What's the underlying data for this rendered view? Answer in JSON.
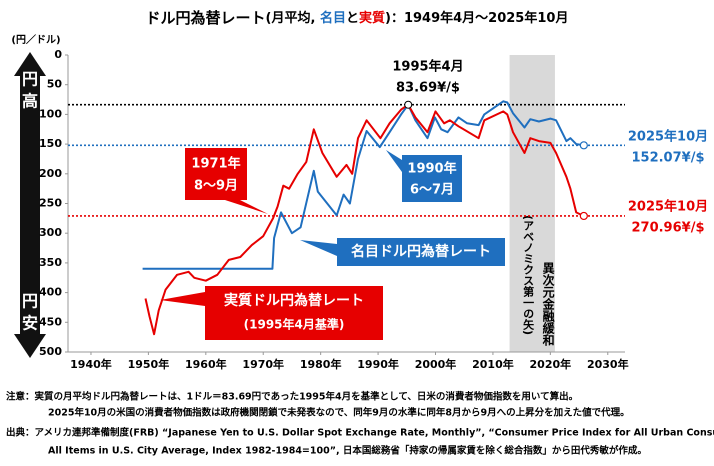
{
  "chart_data": {
    "type": "line",
    "title": [
      "ドル円為替レート",
      "(月平均, ",
      "名目",
      "と",
      "実質",
      ")：1949年4月〜2025年10月"
    ],
    "y_unit": "(円／ドル)",
    "y_arrow": {
      "top": [
        "円",
        "高"
      ],
      "bottom": [
        "円",
        "安"
      ]
    },
    "xlim": [
      1936,
      2033
    ],
    "xticks": [
      {
        "value": 1940,
        "label": "1940年"
      },
      {
        "value": 1950,
        "label": "1950年"
      },
      {
        "value": 1960,
        "label": "1960年"
      },
      {
        "value": 1970,
        "label": "1970年"
      },
      {
        "value": 1980,
        "label": "1980年"
      },
      {
        "value": 1990,
        "label": "1990年"
      },
      {
        "value": 2000,
        "label": "2000年"
      },
      {
        "value": 2010,
        "label": "2010年"
      },
      {
        "value": 2020,
        "label": "2020年"
      },
      {
        "value": 2030,
        "label": "2030年"
      }
    ],
    "ylim": [
      0,
      500
    ],
    "y_inverted": true,
    "yticks": [
      0,
      50,
      100,
      150,
      200,
      250,
      300,
      350,
      400,
      450,
      500
    ],
    "shade": {
      "x": [
        2012.9,
        2020.8
      ],
      "color": "#d9d9d9",
      "labels": [
        "異次元金融緩和",
        "(アベノミクス第一の矢)"
      ]
    },
    "series": [
      {
        "name": "名目ドル円為替レート",
        "color": "#1f6fbf",
        "x": [
          1949,
          1971.6,
          1971.9,
          1973.1,
          1975,
          1976.5,
          1978.8,
          1979.5,
          1982.8,
          1984,
          1985.1,
          1986.5,
          1988,
          1990.3,
          1992,
          1994,
          1995.25,
          1996.5,
          1998.6,
          1999.9,
          2001,
          2002.1,
          2004,
          2005.5,
          2007.5,
          2008.5,
          2011.8,
          2012.5,
          2013.5,
          2015.5,
          2016.5,
          2018,
          2020,
          2021,
          2022.8,
          2023.5,
          2024.5,
          2025.83
        ],
        "values": [
          360,
          360,
          308,
          265,
          300,
          290,
          195,
          230,
          270,
          235,
          250,
          175,
          128,
          155,
          130,
          100,
          83.69,
          110,
          140,
          105,
          125,
          130,
          105,
          115,
          118,
          100,
          78,
          80,
          98,
          122,
          108,
          112,
          107,
          110,
          145,
          140,
          150,
          152.07
        ]
      },
      {
        "name": "実質ドル円為替レート",
        "subname": "(1995年4月基準)",
        "color": "#e60000",
        "x": [
          1949.5,
          1950.2,
          1951,
          1951.8,
          1953,
          1955,
          1957,
          1958,
          1960,
          1962,
          1964,
          1966,
          1968,
          1970,
          1971.7,
          1972.5,
          1973.5,
          1974.5,
          1976,
          1977.5,
          1978.8,
          1980.3,
          1982.8,
          1984.5,
          1985.5,
          1986.5,
          1988,
          1990.4,
          1992,
          1994,
          1995.25,
          1996.5,
          1998.6,
          2000,
          2001.5,
          2002.5,
          2004,
          2007.5,
          2008.5,
          2011.8,
          2012.5,
          2013.5,
          2015.5,
          2016.5,
          2018,
          2020,
          2021,
          2022.8,
          2023.5,
          2024.5,
          2025.83
        ],
        "values": [
          410,
          440,
          470,
          430,
          395,
          370,
          365,
          375,
          380,
          370,
          345,
          340,
          320,
          305,
          275,
          255,
          220,
          225,
          200,
          180,
          125,
          165,
          205,
          185,
          200,
          140,
          110,
          140,
          115,
          92,
          83.69,
          105,
          130,
          95,
          115,
          110,
          120,
          140,
          110,
          95,
          100,
          130,
          165,
          140,
          145,
          148,
          165,
          205,
          225,
          265,
          270.96
        ]
      }
    ],
    "reference_lines": [
      {
        "value": 83.69,
        "label": "83.69¥/$",
        "date": "1995年4月",
        "color": "#000000"
      },
      {
        "value": 152.07,
        "label": "152.07¥/$",
        "date": "2025年10月",
        "color": "#1f6fbf"
      },
      {
        "value": 270.96,
        "label": "270.96¥/$",
        "date": "2025年10月",
        "color": "#e60000"
      }
    ],
    "callouts": [
      [
        "1971年",
        "8〜9月"
      ],
      [
        "1990年",
        "6〜7月"
      ]
    ],
    "notes": [
      "注意：実質の月平均ドル円為替レートは、1ドル＝83.69円であった1995年4月を基準として、日米の消費者物価指数を用いて算出。",
      "2025年10月の米国の消費者物価指数は政府機関閉鎖で未発表なので、同年9月の水準に同年8月から9月への上昇分を加えた値で代理。",
      "出典：アメリカ連邦準備制度(FRB) “Japanese Yen to U.S. Dollar Spot Exchange Rate, Monthly”, “Consumer Price Index for All Urban Consumers:",
      "All Items in U.S. City Average, Index 1982-1984=100”, 日本国総務省「持家の帰属家賃を除く総合指数」から田代秀敏が作成。"
    ]
  }
}
